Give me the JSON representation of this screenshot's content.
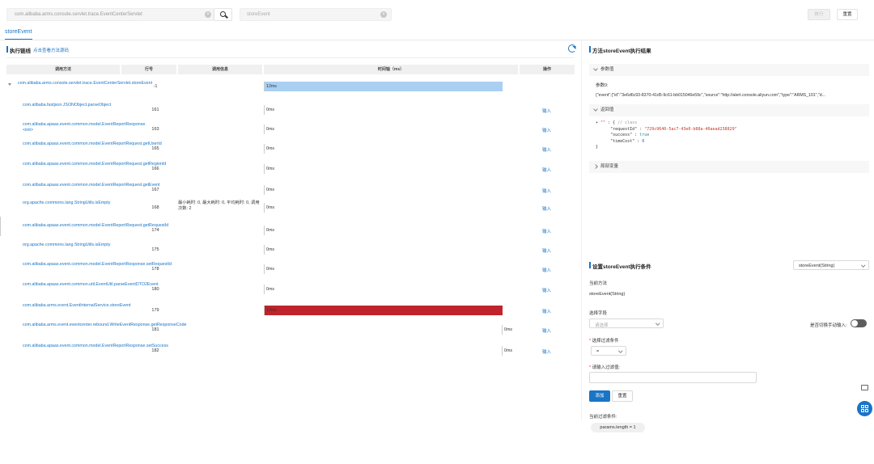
{
  "search": {
    "class_value": "com.alibaba.arms.console.servlet.trace.EventCenterServlet",
    "method_value": "storeEvent",
    "run_label": "执行",
    "reset_label": "重置"
  },
  "tabs": [
    {
      "label": "storeEvent"
    }
  ],
  "trace": {
    "title": "执行链线",
    "view_source_link": "点击查看方法源码",
    "columns": [
      "调用方法",
      "行号",
      "调用信息",
      "时间轴（ms）",
      "操作"
    ],
    "rows": [
      {
        "method": "com.alibaba.arms.console.servlet.trace.EventCenterServlet.storeEvent",
        "line": "-1",
        "info": "",
        "ms": 12,
        "label": "12ms",
        "color": "#a9d0f2",
        "op": ""
      },
      {
        "method": "com.alibaba.fastjson.JSONObject.parseObject",
        "line": "161",
        "info": "",
        "ms": 0,
        "label": "0ms",
        "color": "",
        "op": "输入"
      },
      {
        "method": "com.alibaba.apaas.event.common.model.EventReportResponse.<init>",
        "line": "163",
        "info": "",
        "ms": 0,
        "label": "0ms",
        "color": "",
        "op": "输入"
      },
      {
        "method": "com.alibaba.apaas.event.common.model.EventReportRequest.getUserId",
        "line": "165",
        "info": "",
        "ms": 0,
        "label": "0ms",
        "color": "",
        "op": "输入"
      },
      {
        "method": "com.alibaba.apaas.event.common.model.EventReportRequest.getRegionId",
        "line": "166",
        "info": "",
        "ms": 0,
        "label": "0ms",
        "color": "",
        "op": "输入"
      },
      {
        "method": "com.alibaba.apaas.event.common.model.EventReportRequest.getEvent",
        "line": "167",
        "info": "",
        "ms": 0,
        "label": "0ms",
        "color": "",
        "op": "输入"
      },
      {
        "method": "org.apache.commons.lang.StringUtils.isEmpty",
        "line": "168",
        "info": "最小耗时: 0, 最大耗时: 0, 平均耗时: 0, 调用次数: 2",
        "ms": 0,
        "label": "0ms",
        "color": "",
        "op": "输入"
      },
      {
        "method": "com.alibaba.apaas.event.common.model.EventReportRequest.getRequestId",
        "line": "174",
        "info": "",
        "ms": 0,
        "label": "0ms",
        "color": "",
        "op": "输入"
      },
      {
        "method": "org.apache.commons.lang.StringUtils.isEmpty",
        "line": "175",
        "info": "",
        "ms": 0,
        "label": "0ms",
        "color": "",
        "op": "输入"
      },
      {
        "method": "com.alibaba.apaas.event.common.model.EventReportResponse.setRequestId",
        "line": "178",
        "info": "",
        "ms": 0,
        "label": "0ms",
        "color": "",
        "op": "输入"
      },
      {
        "method": "com.alibaba.apaas.event.common.util.EventUtil.parseEventDTO2Event",
        "line": "180",
        "info": "",
        "ms": 0,
        "label": "0ms",
        "color": "",
        "op": "输入"
      },
      {
        "method": "com.alibaba.arms.event.EventInternalService.storeEvent",
        "line": "179",
        "info": "",
        "ms": 12,
        "label": "12ms",
        "color": "#c0232b",
        "op": "输入"
      },
      {
        "method": "com.alibaba.arms.event.eventcenter.rebound.WriteEventResponse.getResponseCode",
        "line": "181",
        "info": "",
        "ms": 0,
        "label": "0ms",
        "color": "",
        "op": "输入",
        "right": true
      },
      {
        "method": "com.alibaba.apaas.event.common.model.EventReportResponse.setSuccess",
        "line": "182",
        "info": "",
        "ms": 0,
        "label": "0ms",
        "color": "",
        "op": "输入",
        "right": true
      }
    ]
  },
  "result": {
    "title": "方法storeEvent执行结果",
    "params_header": "参数值",
    "params_label": "参数0:",
    "params_value": "{\"event\":{\"id\":\"3e6d6c93-8370-41d5-9c61-bb015046e59c\",\"source\":\"http://alert.console.aliyun.com\",\"type\":\"ARMS_101\",\"d...",
    "return_header": "返回值",
    "return_comment": "// class",
    "return_request_key": "\"requestId\"",
    "return_request_val": "\"729c9640-5ac7-43e0-b88a-40aead238829\"",
    "return_success_key": "\"success\"",
    "return_success_val": "true",
    "return_timecost_key": "\"timeCost\"",
    "return_timecost_val": "0",
    "local_vars_header": "局部变量"
  },
  "condition": {
    "title": "设置storeEvent执行条件",
    "method_select": "storeEvent(String)",
    "current_method_label": "当前方法",
    "current_method_value": "storeEvent(String)",
    "field_label": "选择字段",
    "field_placeholder": "请选择",
    "manual_toggle_label": "是否切换手动输入:",
    "filter_label": "选择过滤条件",
    "filter_value": "=",
    "value_label": "请输入过滤值:",
    "add_label": "添加",
    "reset_label": "重置",
    "current_filter_label": "当前过滤条件:",
    "current_filter_value": "params.length = 1"
  }
}
